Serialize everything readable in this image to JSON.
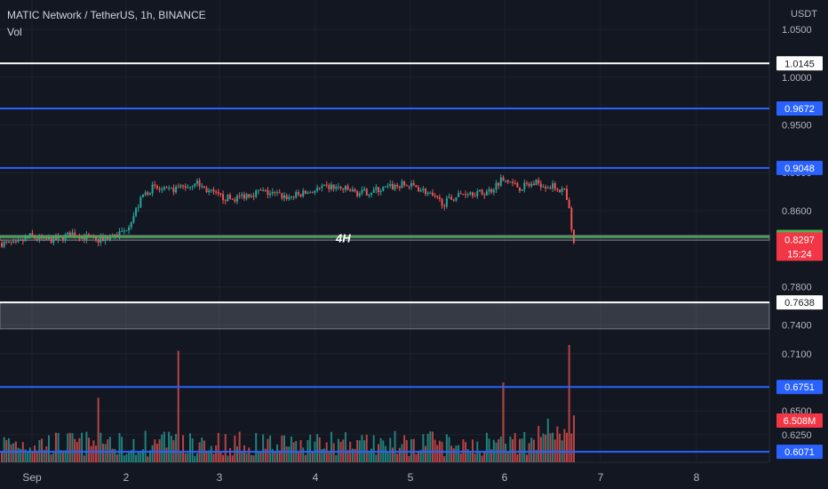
{
  "header": {
    "title": "MATIC Network / TetherUS, 1h, BINANCE",
    "volume_label": "Vol",
    "currency": "USDT"
  },
  "price_scale": {
    "ticks": [
      "1.0500",
      "1.0000",
      "0.9500",
      "0.9000",
      "0.8600",
      "0.7800",
      "0.7400",
      "0.7100",
      "0.6500",
      "0.6250",
      "0.6071"
    ]
  },
  "horizontal_levels": [
    {
      "price": 1.0145,
      "label": "1.0145",
      "color": "#ffffff"
    },
    {
      "price": 0.9672,
      "label": "0.9672",
      "color": "#2962ff"
    },
    {
      "price": 0.9048,
      "label": "0.9048",
      "color": "#2962ff"
    },
    {
      "price": 0.8324,
      "label": "0.8324",
      "color": "#4caf50"
    },
    {
      "price": 0.7638,
      "label": "0.7638",
      "color": "#ffffff"
    },
    {
      "price": 0.6751,
      "label": "0.6751",
      "color": "#2962ff"
    },
    {
      "price": 0.6071,
      "label": "0.6071",
      "color": "#2962ff"
    }
  ],
  "zones": [
    {
      "from": 0.829,
      "to": 0.834,
      "label": "4H"
    },
    {
      "from": 0.7638,
      "to": 0.736,
      "label": ""
    }
  ],
  "current_price": {
    "value": "0.8297",
    "countdown": "15:24",
    "color": "#f23645"
  },
  "volume_badge": {
    "value": "6.508M",
    "color": "#f23645"
  },
  "time_axis": {
    "labels": [
      "Sep",
      "2",
      "3",
      "4",
      "5",
      "6",
      "7",
      "8"
    ]
  },
  "chart_data": {
    "type": "candlestick",
    "title": "MATIC Network / TetherUS, 1h, BINANCE",
    "ylim": [
      0.596,
      1.081
    ],
    "x_labels": [
      "Sep",
      "2",
      "3",
      "4",
      "5",
      "6",
      "7",
      "8"
    ],
    "price_path": [
      [
        0,
        0.826
      ],
      [
        6,
        0.824
      ],
      [
        12,
        0.833
      ],
      [
        18,
        0.829
      ],
      [
        24,
        0.83
      ],
      [
        30,
        0.836
      ],
      [
        36,
        0.832
      ],
      [
        40,
        0.828
      ],
      [
        46,
        0.833
      ],
      [
        52,
        0.838
      ],
      [
        56,
        0.855
      ],
      [
        60,
        0.876
      ],
      [
        64,
        0.884
      ],
      [
        70,
        0.88
      ],
      [
        76,
        0.885
      ],
      [
        80,
        0.886
      ],
      [
        82,
        0.891
      ],
      [
        86,
        0.883
      ],
      [
        92,
        0.875
      ],
      [
        98,
        0.872
      ],
      [
        104,
        0.877
      ],
      [
        110,
        0.88
      ],
      [
        116,
        0.877
      ],
      [
        122,
        0.874
      ],
      [
        128,
        0.878
      ],
      [
        134,
        0.882
      ],
      [
        140,
        0.885
      ],
      [
        146,
        0.882
      ],
      [
        152,
        0.878
      ],
      [
        158,
        0.881
      ],
      [
        164,
        0.884
      ],
      [
        170,
        0.887
      ],
      [
        176,
        0.885
      ],
      [
        180,
        0.88
      ],
      [
        184,
        0.872
      ],
      [
        188,
        0.868
      ],
      [
        192,
        0.874
      ],
      [
        198,
        0.88
      ],
      [
        204,
        0.878
      ],
      [
        208,
        0.882
      ],
      [
        212,
        0.893
      ],
      [
        216,
        0.89
      ],
      [
        220,
        0.884
      ],
      [
        224,
        0.887
      ],
      [
        228,
        0.889
      ],
      [
        232,
        0.886
      ],
      [
        236,
        0.884
      ],
      [
        239,
        0.88
      ],
      [
        241,
        0.86
      ],
      [
        242,
        0.84
      ],
      [
        243,
        0.8297
      ]
    ],
    "volume_spikes": [
      [
        41,
        0.55
      ],
      [
        75,
        0.95
      ],
      [
        213,
        0.68
      ],
      [
        241,
        1.0
      ]
    ]
  }
}
